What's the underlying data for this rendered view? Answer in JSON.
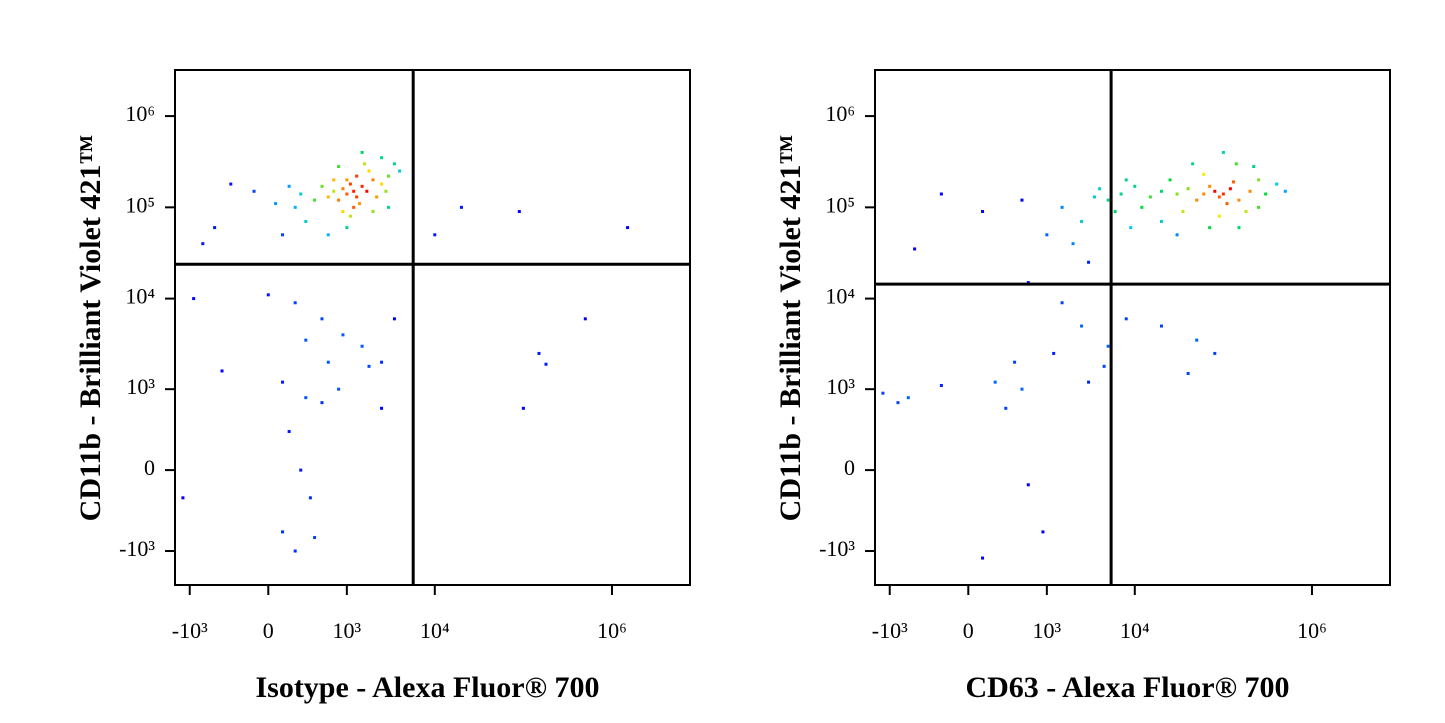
{
  "chart_data": [
    {
      "type": "scatter",
      "xlabel": "Isotype - Alexa Fluor® 700",
      "ylabel": "CD11b - Brilliant Violet 421™",
      "xscale": "biexponential",
      "yscale": "biexponential",
      "xlim": [
        -1480,
        7600000
      ],
      "ylim": [
        -2390,
        3200000
      ],
      "xticks": [
        {
          "value": -1000,
          "label": "-10³"
        },
        0,
        {
          "value": 1000,
          "label": "10³"
        },
        {
          "value": 10000,
          "label": "10⁴"
        },
        {
          "value": 1000000,
          "label": "10⁶"
        }
      ],
      "yticks": [
        {
          "value": -1000,
          "label": "-10³"
        },
        0,
        {
          "value": 1000,
          "label": "10³"
        },
        {
          "value": 10000,
          "label": "10⁴"
        },
        {
          "value": 100000,
          "label": "10⁵"
        },
        {
          "value": 1000000,
          "label": "10⁶"
        }
      ],
      "quadrant_x": 5700,
      "quadrant_y": 23800,
      "x": [
        1200,
        1000,
        1500,
        1300,
        900,
        1100,
        1700,
        800,
        2000,
        1400,
        1000,
        700,
        2500,
        1200,
        600,
        1800,
        3000,
        900,
        2200,
        500,
        1600,
        1300,
        400,
        2800,
        700,
        1100,
        3500,
        250,
        150,
        50,
        -100,
        -300,
        300,
        2000,
        1000,
        600,
        3000,
        4000,
        2500,
        800,
        1500,
        200,
        -500,
        -700,
        100,
        20000,
        90000,
        1500000,
        10000,
        -900,
        0,
        200,
        500,
        900,
        300,
        1500,
        2500,
        3500,
        600,
        -400,
        100,
        300,
        500,
        150,
        250,
        350,
        100,
        400,
        200,
        800,
        2500,
        150000,
        180000,
        500000,
        100000,
        -1200,
        1800
      ],
      "values": [
        150000,
        140000,
        170000,
        130000,
        160000,
        180000,
        150000,
        120000,
        200000,
        110000,
        200000,
        150000,
        180000,
        100000,
        130000,
        250000,
        220000,
        90000,
        130000,
        170000,
        300000,
        220000,
        120000,
        150000,
        200000,
        80000,
        300000,
        140000,
        170000,
        110000,
        150000,
        180000,
        70000,
        90000,
        60000,
        50000,
        100000,
        250000,
        350000,
        280000,
        400000,
        100000,
        60000,
        40000,
        50000,
        100000,
        90000,
        60000,
        50000,
        10000,
        11000,
        9000,
        6000,
        4000,
        3500,
        3000,
        2000,
        6000,
        2000,
        1600,
        1200,
        800,
        700,
        300,
        0,
        -200,
        -600,
        -700,
        -1000,
        1000,
        600,
        2500,
        1900,
        6000,
        600,
        -200,
        1800
      ]
    },
    {
      "type": "scatter",
      "xlabel": "CD63 - Alexa Fluor® 700",
      "ylabel": "CD11b - Brilliant Violet 421™",
      "xscale": "biexponential",
      "yscale": "biexponential",
      "xlim": [
        -1480,
        7600000
      ],
      "ylim": [
        -2390,
        3200000
      ],
      "xticks": [
        {
          "value": -1000,
          "label": "-10³"
        },
        0,
        {
          "value": 1000,
          "label": "10³"
        },
        {
          "value": 10000,
          "label": "10⁴"
        },
        {
          "value": 1000000,
          "label": "10⁶"
        }
      ],
      "yticks": [
        {
          "value": -1000,
          "label": "-10³"
        },
        0,
        {
          "value": 1000,
          "label": "10³"
        },
        {
          "value": 10000,
          "label": "10⁴"
        },
        {
          "value": 100000,
          "label": "10⁵"
        },
        {
          "value": 1000000,
          "label": "10⁶"
        }
      ],
      "quadrant_x": 5400,
      "quadrant_y": 14400,
      "x": [
        100000,
        90000,
        120000,
        80000,
        150000,
        70000,
        110000,
        60000,
        200000,
        130000,
        50000,
        40000,
        30000,
        20000,
        15000,
        10000,
        7000,
        5000,
        250000,
        300000,
        180000,
        90000,
        60000,
        35000,
        25000,
        12000,
        8000,
        400000,
        500000,
        220000,
        140000,
        45000,
        150000,
        70000,
        20000,
        6000,
        4000,
        3500,
        100000,
        250000,
        9000,
        30000,
        -200,
        100,
        500,
        1500,
        2500,
        1000,
        2000,
        3000,
        -500,
        600,
        1500,
        2500,
        5000,
        8000,
        20000,
        50000,
        80000,
        40000,
        1200,
        400,
        200,
        -200,
        -800,
        -600,
        300,
        600,
        900,
        100,
        -1200,
        500,
        3000,
        4500
      ],
      "values": [
        140000,
        130000,
        160000,
        150000,
        120000,
        170000,
        110000,
        140000,
        150000,
        190000,
        120000,
        160000,
        140000,
        150000,
        130000,
        170000,
        140000,
        120000,
        200000,
        140000,
        90000,
        80000,
        230000,
        90000,
        200000,
        100000,
        200000,
        180000,
        150000,
        280000,
        300000,
        300000,
        60000,
        60000,
        70000,
        90000,
        160000,
        130000,
        400000,
        100000,
        60000,
        50000,
        140000,
        90000,
        120000,
        100000,
        70000,
        50000,
        40000,
        25000,
        35000,
        15000,
        9000,
        5000,
        3000,
        6000,
        5000,
        3500,
        2500,
        1500,
        2500,
        2000,
        1200,
        1100,
        700,
        800,
        600,
        -100,
        -600,
        -1200,
        900,
        1000,
        1200,
        1800
      ]
    }
  ]
}
